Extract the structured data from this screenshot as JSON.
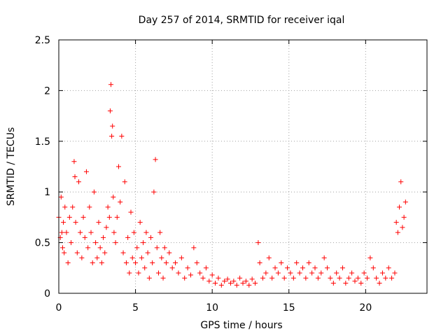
{
  "chart_data": {
    "type": "scatter",
    "title": "Day 257 of 2014, SRMTID for receiver iqal",
    "xlabel": "GPS time / hours",
    "ylabel": "SRMTID / TECUs",
    "xlim": [
      0,
      24
    ],
    "ylim": [
      0,
      2.5
    ],
    "xticks": [
      0,
      5,
      10,
      15,
      20
    ],
    "xtick_labels": [
      "0",
      "5",
      "10",
      "15",
      "20"
    ],
    "yticks": [
      0,
      0.5,
      1,
      1.5,
      2,
      2.5
    ],
    "ytick_labels": [
      "0",
      "0.5",
      "1",
      "1.5",
      "2",
      "2.5"
    ],
    "grid": true,
    "marker": "+",
    "series": [
      {
        "name": "SRMTID",
        "color": "#ff0000",
        "x": [
          0.0,
          0.1,
          0.15,
          0.2,
          0.25,
          0.3,
          0.35,
          0.4,
          0.5,
          0.6,
          0.7,
          0.8,
          0.9,
          1.0,
          1.05,
          1.1,
          1.2,
          1.3,
          1.4,
          1.5,
          1.6,
          1.7,
          1.8,
          1.9,
          2.0,
          2.1,
          2.2,
          2.3,
          2.4,
          2.5,
          2.6,
          2.7,
          2.8,
          2.9,
          3.0,
          3.1,
          3.2,
          3.3,
          3.35,
          3.4,
          3.45,
          3.5,
          3.55,
          3.6,
          3.7,
          3.8,
          3.9,
          4.0,
          4.1,
          4.2,
          4.3,
          4.4,
          4.5,
          4.6,
          4.7,
          4.8,
          4.9,
          5.0,
          5.1,
          5.2,
          5.3,
          5.4,
          5.5,
          5.6,
          5.7,
          5.8,
          5.9,
          6.0,
          6.1,
          6.2,
          6.3,
          6.4,
          6.5,
          6.6,
          6.7,
          6.8,
          6.9,
          7.0,
          7.2,
          7.4,
          7.6,
          7.8,
          8.0,
          8.2,
          8.4,
          8.6,
          8.8,
          9.0,
          9.2,
          9.4,
          9.6,
          9.8,
          10.0,
          10.2,
          10.4,
          10.6,
          10.8,
          11.0,
          11.2,
          11.4,
          11.6,
          11.8,
          12.0,
          12.2,
          12.4,
          12.6,
          12.8,
          13.0,
          13.1,
          13.3,
          13.5,
          13.7,
          13.9,
          14.1,
          14.3,
          14.5,
          14.7,
          14.9,
          15.1,
          15.3,
          15.5,
          15.7,
          15.9,
          16.1,
          16.3,
          16.5,
          16.7,
          16.9,
          17.1,
          17.3,
          17.5,
          17.7,
          17.9,
          18.1,
          18.3,
          18.5,
          18.7,
          18.9,
          19.1,
          19.3,
          19.5,
          19.7,
          19.9,
          20.1,
          20.3,
          20.5,
          20.7,
          20.9,
          21.1,
          21.3,
          21.5,
          21.7,
          21.9,
          22.0,
          22.1,
          22.2,
          22.3,
          22.4,
          22.5,
          22.6
        ],
        "y": [
          0.75,
          0.55,
          0.95,
          0.6,
          0.45,
          0.7,
          0.4,
          0.85,
          0.6,
          0.3,
          0.75,
          0.5,
          0.85,
          1.3,
          1.15,
          0.7,
          0.4,
          1.1,
          0.6,
          0.35,
          0.75,
          0.55,
          1.2,
          0.45,
          0.85,
          0.6,
          0.3,
          1.0,
          0.5,
          0.35,
          0.7,
          0.45,
          0.3,
          0.55,
          0.4,
          0.65,
          0.85,
          0.75,
          1.8,
          2.06,
          1.55,
          1.65,
          0.95,
          0.6,
          0.5,
          0.75,
          1.25,
          0.9,
          1.55,
          0.4,
          1.1,
          0.3,
          0.55,
          0.2,
          0.8,
          0.35,
          0.6,
          0.3,
          0.45,
          0.2,
          0.7,
          0.35,
          0.5,
          0.25,
          0.6,
          0.4,
          0.15,
          0.55,
          0.3,
          1.0,
          1.32,
          0.45,
          0.2,
          0.6,
          0.35,
          0.15,
          0.45,
          0.3,
          0.4,
          0.25,
          0.3,
          0.2,
          0.35,
          0.15,
          0.25,
          0.18,
          0.45,
          0.3,
          0.2,
          0.15,
          0.25,
          0.12,
          0.18,
          0.1,
          0.15,
          0.08,
          0.12,
          0.14,
          0.1,
          0.12,
          0.08,
          0.15,
          0.1,
          0.12,
          0.08,
          0.14,
          0.1,
          0.5,
          0.3,
          0.15,
          0.2,
          0.35,
          0.15,
          0.25,
          0.2,
          0.3,
          0.15,
          0.25,
          0.2,
          0.15,
          0.3,
          0.2,
          0.25,
          0.15,
          0.3,
          0.2,
          0.25,
          0.15,
          0.2,
          0.35,
          0.25,
          0.15,
          0.1,
          0.2,
          0.15,
          0.25,
          0.1,
          0.15,
          0.2,
          0.12,
          0.15,
          0.1,
          0.2,
          0.15,
          0.35,
          0.25,
          0.15,
          0.1,
          0.2,
          0.15,
          0.25,
          0.15,
          0.2,
          0.7,
          0.6,
          0.85,
          1.1,
          0.65,
          0.75,
          0.9
        ]
      }
    ]
  }
}
